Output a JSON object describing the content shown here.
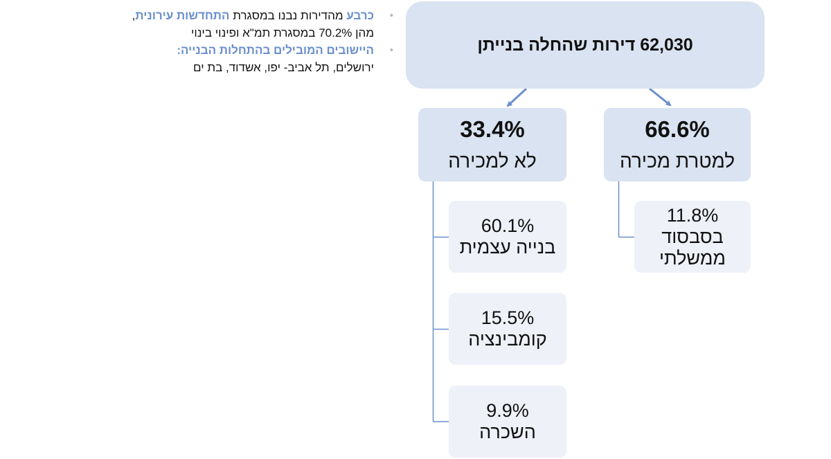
{
  "root": {
    "label": "62,030 דירות שהחלה בנייתן"
  },
  "not_for_sale": {
    "percent": "33.4%",
    "label": "לא למכירה",
    "children": [
      {
        "percent": "60.1%",
        "label": "בנייה עצמית"
      },
      {
        "percent": "15.5%",
        "label": "קומבינציה"
      },
      {
        "percent": "9.9%",
        "label": "השכרה"
      }
    ]
  },
  "for_sale": {
    "percent": "66.6%",
    "label": "למטרת מכירה",
    "children": [
      {
        "percent": "11.8%",
        "label_line1": "בסבסוד",
        "label_line2": "ממשלתי"
      }
    ]
  },
  "notes": {
    "bullet": "•",
    "n1_hl1": "כרבע",
    "n1_text1": " מהדירות נבנו במסגרת ",
    "n1_hl2": "התחדשות עירונית",
    "n1_text2": ",",
    "n1_line2": "מהן 70.2% במסגרת תמ\"א ופינוי בינוי",
    "n2_hl": "היישובים המובילים בהתחלות הבנייה:",
    "n2_line2": "ירושלים, תל אביב- יפו, אשדוד, בת ים"
  },
  "colors": {
    "main_box": "#d9e3f1",
    "sub_box": "#eff1f9",
    "connector": "#6a8fcd",
    "highlight": "#6a8fcd"
  }
}
